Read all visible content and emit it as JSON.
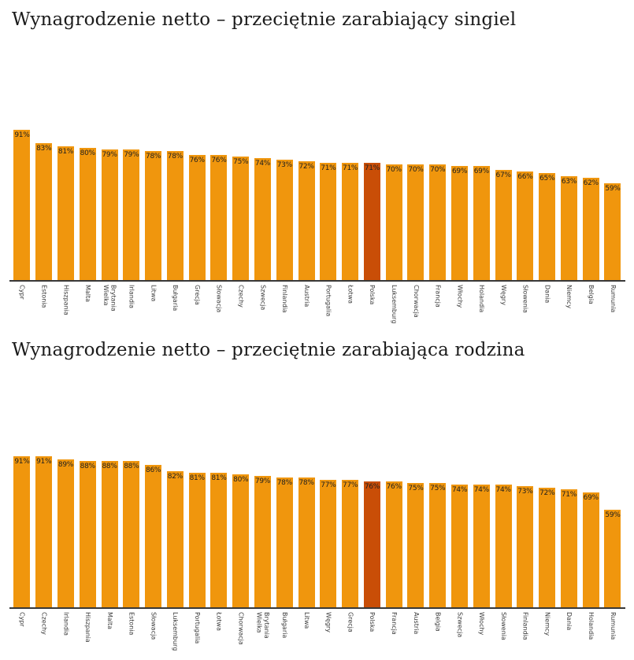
{
  "chart_data": [
    {
      "type": "bar",
      "title": "Wynagrodzenie netto – przeciętnie zarabiający singiel",
      "xlabel": "",
      "ylabel": "",
      "ylim": [
        0,
        100
      ],
      "grid": false,
      "legend": false,
      "value_suffix": "%",
      "bar_color": "#F0960D",
      "highlight_color": "#C94E07",
      "highlight_category": "Polska",
      "categories": [
        "Cypr",
        "Estonia",
        "Hiszpania",
        "Malta",
        "Wielka Brytania",
        "Irlandia",
        "Litwa",
        "Bułgaria",
        "Grecja",
        "Słowacja",
        "Czechy",
        "Szwecja",
        "Finlandia",
        "Austria",
        "Portugalia",
        "Łotwa",
        "Polska",
        "Luksemburg",
        "Chorwacja",
        "Francja",
        "Włochy",
        "Holandia",
        "Węgry",
        "Słowenia",
        "Dania",
        "Niemcy",
        "Belgia",
        "Rumunia"
      ],
      "values": [
        91,
        83,
        81,
        80,
        79,
        79,
        78,
        78,
        76,
        76,
        75,
        74,
        73,
        72,
        71,
        71,
        71,
        70,
        70,
        70,
        69,
        69,
        67,
        66,
        65,
        63,
        62,
        59
      ]
    },
    {
      "type": "bar",
      "title": "Wynagrodzenie netto – przeciętnie zarabiająca rodzina",
      "xlabel": "",
      "ylabel": "",
      "ylim": [
        0,
        100
      ],
      "grid": false,
      "legend": false,
      "value_suffix": "%",
      "bar_color": "#F0960D",
      "highlight_color": "#C94E07",
      "highlight_category": "Polska",
      "categories": [
        "Cypr",
        "Czechy",
        "Irlandia",
        "Hiszpania",
        "Malta",
        "Estonia",
        "Słowacja",
        "Luksemburg",
        "Portugalia",
        "Łotwa",
        "Chorwacja",
        "Wielka Brytania",
        "Bułgaria",
        "Litwa",
        "Węgry",
        "Grecja",
        "Polska",
        "Francja",
        "Austria",
        "Belgia",
        "Szwecja",
        "Włochy",
        "Słowenia",
        "Finlandia",
        "Niemcy",
        "Dania",
        "Holandia",
        "Rumunia"
      ],
      "values": [
        91,
        91,
        89,
        88,
        88,
        88,
        86,
        82,
        81,
        81,
        80,
        79,
        78,
        78,
        77,
        77,
        76,
        76,
        75,
        75,
        74,
        74,
        74,
        73,
        72,
        71,
        69,
        59
      ]
    }
  ]
}
